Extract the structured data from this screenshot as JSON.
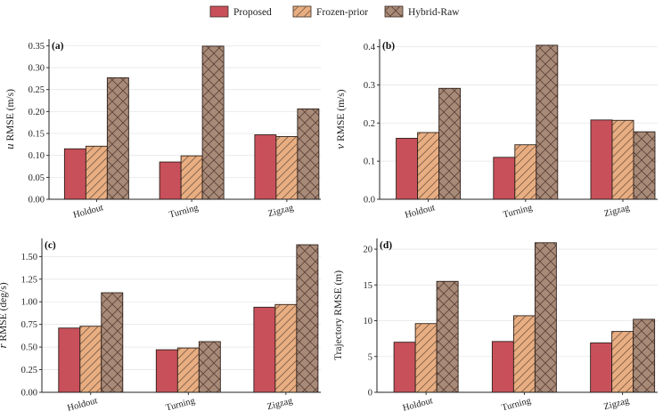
{
  "legend": [
    {
      "name": "Proposed",
      "color": "#c8505a",
      "hatch": "none"
    },
    {
      "name": "Frozen-prior",
      "color": "#e8ae82",
      "hatch": "diag"
    },
    {
      "name": "Hybrid-Raw",
      "color": "#a88a78",
      "hatch": "cross"
    }
  ],
  "chart_data": [
    {
      "type": "bar",
      "panel_label": "(a)",
      "ylabel_symbol": "u",
      "ylabel": " RMSE (m/s)",
      "categories": [
        "Holdout",
        "Turning",
        "Zigzag"
      ],
      "series": [
        {
          "name": "Proposed",
          "values": [
            0.115,
            0.085,
            0.147
          ]
        },
        {
          "name": "Frozen-prior",
          "values": [
            0.121,
            0.099,
            0.143
          ]
        },
        {
          "name": "Hybrid-Raw",
          "values": [
            0.277,
            0.349,
            0.206
          ]
        }
      ],
      "ylim": [
        0,
        0.365
      ],
      "yticks": [
        0.0,
        0.05,
        0.1,
        0.15,
        0.2,
        0.25,
        0.3,
        0.35
      ],
      "ytick_labels": [
        "0.00",
        "0.05",
        "0.10",
        "0.15",
        "0.20",
        "0.25",
        "0.30",
        "0.35"
      ],
      "grid": "y"
    },
    {
      "type": "bar",
      "panel_label": "(b)",
      "ylabel_symbol": "v",
      "ylabel": " RMSE (m/s)",
      "categories": [
        "Holdout",
        "Turning",
        "Zigzag"
      ],
      "series": [
        {
          "name": "Proposed",
          "values": [
            0.16,
            0.11,
            0.208
          ]
        },
        {
          "name": "Frozen-prior",
          "values": [
            0.175,
            0.143,
            0.207
          ]
        },
        {
          "name": "Hybrid-Raw",
          "values": [
            0.291,
            0.404,
            0.177
          ]
        }
      ],
      "ylim": [
        0,
        0.42
      ],
      "yticks": [
        0.0,
        0.1,
        0.2,
        0.3,
        0.4
      ],
      "ytick_labels": [
        "0.0",
        "0.1",
        "0.2",
        "0.3",
        "0.4"
      ],
      "grid": "y"
    },
    {
      "type": "bar",
      "panel_label": "(c)",
      "ylabel_symbol": "r",
      "ylabel": " RMSE (deg/s)",
      "categories": [
        "Holdout",
        "Turning",
        "Zigzag"
      ],
      "series": [
        {
          "name": "Proposed",
          "values": [
            0.71,
            0.47,
            0.94
          ]
        },
        {
          "name": "Frozen-prior",
          "values": [
            0.73,
            0.49,
            0.97
          ]
        },
        {
          "name": "Hybrid-Raw",
          "values": [
            1.1,
            0.56,
            1.63
          ]
        }
      ],
      "ylim": [
        0,
        1.7
      ],
      "yticks": [
        0.0,
        0.25,
        0.5,
        0.75,
        1.0,
        1.25,
        1.5
      ],
      "ytick_labels": [
        "0.00",
        "0.25",
        "0.50",
        "0.75",
        "1.00",
        "1.25",
        "1.50"
      ],
      "grid": "y"
    },
    {
      "type": "bar",
      "panel_label": "(d)",
      "ylabel_symbol": "",
      "ylabel": "Trajectory RMSE (m)",
      "categories": [
        "Holdout",
        "Turning",
        "Zigzag"
      ],
      "series": [
        {
          "name": "Proposed",
          "values": [
            7.0,
            7.1,
            6.9
          ]
        },
        {
          "name": "Frozen-prior",
          "values": [
            9.6,
            10.7,
            8.5
          ]
        },
        {
          "name": "Hybrid-Raw",
          "values": [
            15.5,
            20.9,
            10.2
          ]
        }
      ],
      "ylim": [
        0,
        21.5
      ],
      "yticks": [
        0,
        5,
        10,
        15,
        20
      ],
      "ytick_labels": [
        "0",
        "5",
        "10",
        "15",
        "20"
      ],
      "grid": "y"
    }
  ]
}
